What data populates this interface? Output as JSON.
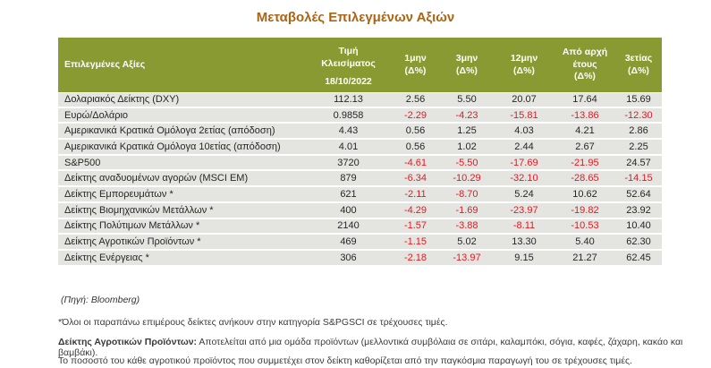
{
  "title": "Μεταβολές Επιλεγμένων Αξιών",
  "colors": {
    "header_bg": "#8a9a33",
    "row_bg": "#e4e4e1",
    "negative_text": "#e11b22",
    "title_text": "#ab6414"
  },
  "table": {
    "header": {
      "assets_label": "Επιλεγμένες Αξίες",
      "close_line1": "Τιμή",
      "close_line2": "Κλεισίματος",
      "close_date": "18/10/2022",
      "percent_columns": [
        {
          "key": "m1",
          "lines": [
            "1μην",
            "(Δ%)"
          ]
        },
        {
          "key": "m3",
          "lines": [
            "3μην",
            "(Δ%)"
          ]
        },
        {
          "key": "m12",
          "lines": [
            "12μην",
            "(Δ%)"
          ]
        },
        {
          "key": "ytd",
          "lines": [
            "Από αρχή",
            "έτους",
            "(Δ%)"
          ]
        },
        {
          "key": "y3",
          "lines": [
            "3ετίας",
            "(Δ%)"
          ]
        }
      ]
    },
    "rows": [
      {
        "label": "Δολαριακός Δείκτης (DXY)",
        "close": "112.13",
        "m1": "2.56",
        "m3": "5.50",
        "m12": "20.07",
        "ytd": "17.64",
        "y3": "15.69"
      },
      {
        "label": "Ευρώ/Δολάριο",
        "close": "0.9858",
        "m1": "-2.29",
        "m3": "-4.23",
        "m12": "-15.81",
        "ytd": "-13.86",
        "y3": "-12.30"
      },
      {
        "label": "Αμερικανικά Κρατικά Ομόλογα 2ετίας (απόδοση)",
        "close": "4.43",
        "m1": "0.56",
        "m3": "1.25",
        "m12": "4.03",
        "ytd": "4.21",
        "y3": "2.86"
      },
      {
        "label": "Αμερικανικά Κρατικά Ομόλογα 10ετίας (απόδοση)",
        "close": "4.01",
        "m1": "0.56",
        "m3": "1.02",
        "m12": "2.44",
        "ytd": "2.67",
        "y3": "2.25"
      },
      {
        "label": "S&P500",
        "close": "3720",
        "m1": "-4.61",
        "m3": "-5.50",
        "m12": "-17.69",
        "ytd": "-21.95",
        "y3": "24.57"
      },
      {
        "label": "Δείκτης αναδυομένων αγορών (MSCI EM)",
        "close": "879",
        "m1": "-6.34",
        "m3": "-10.29",
        "m12": "-32.10",
        "ytd": "-28.65",
        "y3": "-14.15"
      },
      {
        "label": "Δείκτης Εμπορευμάτων *",
        "close": "621",
        "m1": "-2.11",
        "m3": "-8.70",
        "m12": "5.24",
        "ytd": "10.62",
        "y3": "52.64"
      },
      {
        "label": "Δείκτης Βιομηχανικών Μετάλλων *",
        "close": "400",
        "m1": "-4.29",
        "m3": "-1.69",
        "m12": "-23.97",
        "ytd": "-19.82",
        "y3": "23.92"
      },
      {
        "label": "Δείκτης Πολύτιμων Μετάλλων *",
        "close": "2140",
        "m1": "-1.57",
        "m3": "-3.88",
        "m12": "-8.11",
        "ytd": "-10.53",
        "y3": "10.40"
      },
      {
        "label": "Δείκτης Αγροτικών Προϊόντων *",
        "close": "469",
        "m1": "-1.15",
        "m3": "5.02",
        "m12": "13.30",
        "ytd": "5.40",
        "y3": "62.30"
      },
      {
        "label": "Δείκτης Ενέργειας *",
        "close": "306",
        "m1": "-2.18",
        "m3": "-13.97",
        "m12": "9.15",
        "ytd": "21.27",
        "y3": "62.45"
      }
    ]
  },
  "source": "(Πηγή: Bloomberg)",
  "footnotes": [
    {
      "bold": "",
      "text": "*Όλοι οι παραπάνω επιμέρους δείκτες ανήκουν στην κατηγορία S&PGSCI σε τρέχουσες τιμές."
    },
    {
      "bold": "Δείκτης Αγροτικών Προϊόντων:",
      "text": " Αποτελείται από μια ομάδα προϊόντων (μελλοντικά συμβόλαια σε σιτάρι, καλαμπόκι, σόγια, καφές, ζάχαρη, κακάο και βαμβάκι)."
    },
    {
      "bold": "",
      "text": "Το ποσοστό του κάθε αγροτικού προϊόντος που συμμετέχει στον δείκτη καθορίζεται από την παγκόσμια παραγωγή του σε τρέχουσες τιμές."
    }
  ]
}
